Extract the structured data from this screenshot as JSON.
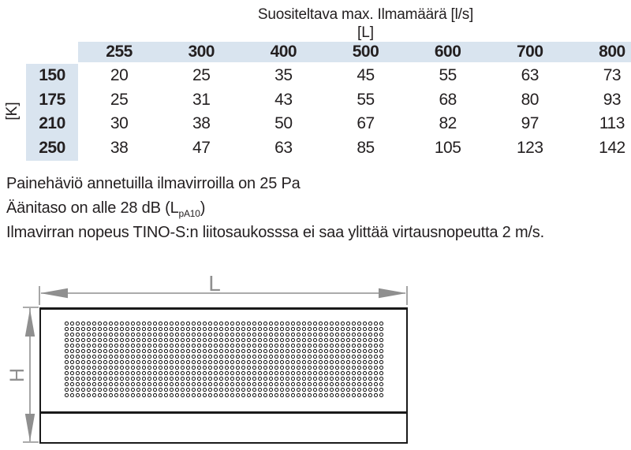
{
  "table": {
    "title": "Suositeltava max. Ilmamäärä [l/s]",
    "col_axis_label": "[L]",
    "row_axis_label": "[K]",
    "col_headers": [
      "255",
      "300",
      "400",
      "500",
      "600",
      "700",
      "800"
    ],
    "rows": [
      {
        "header": "150",
        "values": [
          "20",
          "25",
          "35",
          "45",
          "55",
          "63",
          "73"
        ]
      },
      {
        "header": "175",
        "values": [
          "25",
          "31",
          "43",
          "55",
          "68",
          "80",
          "93"
        ]
      },
      {
        "header": "210",
        "values": [
          "30",
          "38",
          "50",
          "67",
          "82",
          "97",
          "113"
        ]
      },
      {
        "header": "250",
        "values": [
          "38",
          "47",
          "63",
          "85",
          "105",
          "123",
          "142"
        ]
      }
    ]
  },
  "notes": {
    "line1": "Painehäviö annetuilla ilmavirroilla on 25 Pa",
    "line2_prefix": "Äänitaso on alle 28 dB (L",
    "line2_sub": "pA10",
    "line2_suffix": ")",
    "line3": "Ilmavirran nopeus TINO-S:n liitosaukosssa ei saa ylittää virtausnopeutta 2 m/s."
  },
  "diagram": {
    "length_label": "L",
    "height_label": "H",
    "perforation_rows": 14,
    "perforation_cols": 58
  },
  "colors": {
    "header_bg": "#d9e4ef",
    "text": "#231f20",
    "dimension": "#8f8f8f",
    "outline": "#1a1a1a",
    "perforation": "#111111"
  }
}
